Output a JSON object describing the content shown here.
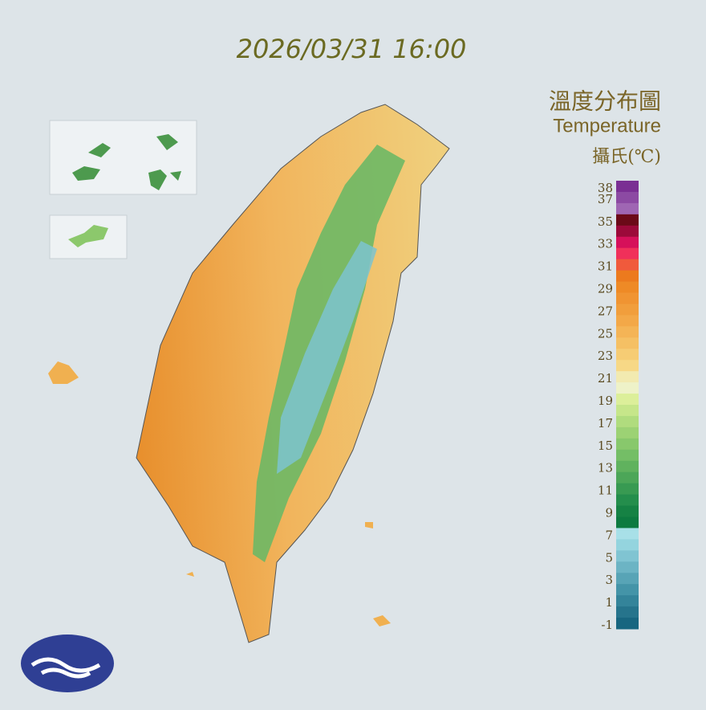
{
  "header": {
    "timestamp": "2026/03/31 16:00",
    "title": "溫度分布圖",
    "subtitle": "Temperature",
    "unit": "攝氏(℃)"
  },
  "legend": {
    "labels": [
      38,
      37,
      35,
      33,
      31,
      29,
      27,
      25,
      23,
      21,
      19,
      17,
      15,
      13,
      11,
      9,
      7,
      5,
      3,
      1,
      -1
    ],
    "colors": [
      "#7a2f93",
      "#8c4aa3",
      "#9f66b3",
      "#6b0a18",
      "#9c0a3a",
      "#d6105a",
      "#f0305a",
      "#f05a3c",
      "#ec7a1e",
      "#ee8a26",
      "#f09432",
      "#f19e3c",
      "#f3a848",
      "#f4b456",
      "#f5c064",
      "#f6cc74",
      "#f7d886",
      "#f2eab0",
      "#eef2c8",
      "#dcef9a",
      "#c6e68a",
      "#b0dc7e",
      "#9cd274",
      "#88c86c",
      "#74be66",
      "#60b25e",
      "#4ca658",
      "#389a52",
      "#248e4c",
      "#168244",
      "#0d7a40",
      "#a8e0e8",
      "#94d4de",
      "#80c4d2",
      "#6cb4c4",
      "#58a4b6",
      "#4494a8",
      "#34849a",
      "#26748c",
      "#186680"
    ]
  }
}
